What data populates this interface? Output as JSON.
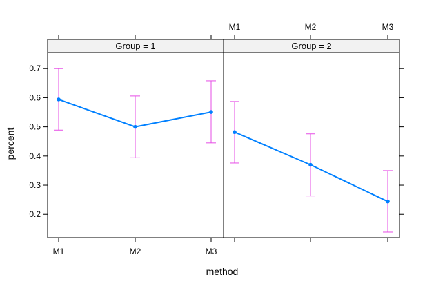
{
  "chart_data": {
    "type": "line",
    "xlabel": "method",
    "ylabel": "percent",
    "categories": [
      "M1",
      "M2",
      "M3"
    ],
    "ylim": [
      0.12,
      0.755
    ],
    "yticks": [
      0.2,
      0.3,
      0.4,
      0.5,
      0.6,
      0.7
    ],
    "grid": false,
    "panels": [
      {
        "strip": "Group = 1",
        "values": [
          0.594,
          0.5,
          0.551
        ],
        "lower": [
          0.489,
          0.394,
          0.445
        ],
        "upper": [
          0.7,
          0.606,
          0.658
        ]
      },
      {
        "strip": "Group = 2",
        "values": [
          0.482,
          0.37,
          0.244
        ],
        "lower": [
          0.376,
          0.263,
          0.139
        ],
        "upper": [
          0.587,
          0.476,
          0.35
        ]
      }
    ],
    "colors": {
      "line": "#0080ff",
      "error_bar": "#e64ce6",
      "strip_bg": "#f2f2f2",
      "border": "#000000"
    }
  }
}
